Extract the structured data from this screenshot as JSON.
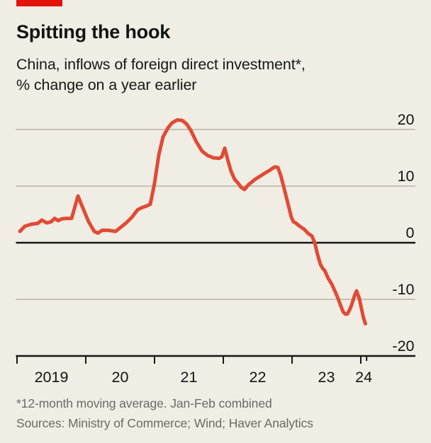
{
  "colors": {
    "background": "#f0ede4",
    "brand_red": "#e3120b",
    "line_red": "#e04b35",
    "gridline": "#b7b3a9",
    "axis": "#161616",
    "text_dark": "#131313",
    "text_gray": "#6b6b64"
  },
  "header": {
    "title": "Spitting the hook",
    "subtitle_line1": "China, inflows of foreign direct investment*,",
    "subtitle_line2": "% change on a year earlier"
  },
  "chart_data": {
    "type": "line",
    "title": "Spitting the hook",
    "subtitle": "China, inflows of foreign direct investment*, % change on a year earlier",
    "unit": "%",
    "grid": "horizontal only",
    "legend": "none",
    "x_axis": {
      "note": "decimal years; 2019.0 = Jan 2019 tick",
      "tick_labels": [
        "2019",
        "20",
        "21",
        "22",
        "23",
        "24"
      ],
      "tick_positions_years": [
        2019,
        2020,
        2021,
        2022,
        2023,
        2024
      ],
      "end_tick_year": 2024.084
    },
    "y_axis": {
      "tick_values": [
        20,
        10,
        0,
        -10,
        -20
      ],
      "gridline_values": [
        20,
        10,
        -10
      ],
      "zero_line_value": 0,
      "range": [
        -20,
        22.5
      ]
    },
    "series": [
      {
        "name": "China inflows of foreign direct investment, % change on a year earlier (12-month moving average)",
        "color": "#e04b35",
        "points": [
          [
            2019.041,
            2.0
          ],
          [
            2019.113,
            2.9
          ],
          [
            2019.216,
            3.3
          ],
          [
            2019.299,
            3.4
          ],
          [
            2019.361,
            4.0
          ],
          [
            2019.433,
            3.5
          ],
          [
            2019.495,
            3.7
          ],
          [
            2019.546,
            4.3
          ],
          [
            2019.598,
            3.9
          ],
          [
            2019.649,
            4.2
          ],
          [
            2019.711,
            4.3
          ],
          [
            2019.794,
            4.3
          ],
          [
            2019.887,
            8.25
          ],
          [
            2019.969,
            5.8
          ],
          [
            2020.041,
            3.7
          ],
          [
            2020.124,
            2.0
          ],
          [
            2020.175,
            1.7
          ],
          [
            2020.237,
            2.2
          ],
          [
            2020.32,
            2.2
          ],
          [
            2020.381,
            2.1
          ],
          [
            2020.433,
            2.0
          ],
          [
            2020.505,
            2.7
          ],
          [
            2020.588,
            3.5
          ],
          [
            2020.67,
            4.5
          ],
          [
            2020.753,
            5.8
          ],
          [
            2020.814,
            6.2
          ],
          [
            2020.887,
            6.5
          ],
          [
            2020.938,
            6.8
          ],
          [
            2021.0,
            10.5
          ],
          [
            2021.062,
            15.5
          ],
          [
            2021.124,
            18.7
          ],
          [
            2021.196,
            20.3
          ],
          [
            2021.258,
            21.2
          ],
          [
            2021.33,
            21.7
          ],
          [
            2021.402,
            21.6
          ],
          [
            2021.464,
            21.0
          ],
          [
            2021.526,
            19.9
          ],
          [
            2021.608,
            17.8
          ],
          [
            2021.691,
            16.2
          ],
          [
            2021.773,
            15.4
          ],
          [
            2021.856,
            15.0
          ],
          [
            2021.938,
            14.9
          ],
          [
            2021.979,
            15.2
          ],
          [
            2022.021,
            16.7
          ],
          [
            2022.072,
            14.3
          ],
          [
            2022.113,
            12.6
          ],
          [
            2022.165,
            11.2
          ],
          [
            2022.216,
            10.5
          ],
          [
            2022.258,
            9.8
          ],
          [
            2022.309,
            9.4
          ],
          [
            2022.361,
            10.2
          ],
          [
            2022.412,
            10.7
          ],
          [
            2022.464,
            11.2
          ],
          [
            2022.515,
            11.6
          ],
          [
            2022.567,
            12.0
          ],
          [
            2022.619,
            12.4
          ],
          [
            2022.67,
            12.75
          ],
          [
            2022.722,
            13.2
          ],
          [
            2022.753,
            13.4
          ],
          [
            2022.794,
            13.3
          ],
          [
            2022.835,
            11.9
          ],
          [
            2022.876,
            10.0
          ],
          [
            2022.918,
            8.0
          ],
          [
            2022.959,
            6.0
          ],
          [
            2022.99,
            4.5
          ],
          [
            2023.021,
            3.7
          ],
          [
            2023.052,
            3.5
          ],
          [
            2023.113,
            2.9
          ],
          [
            2023.175,
            2.4
          ],
          [
            2023.237,
            1.6
          ],
          [
            2023.289,
            1.2
          ],
          [
            2023.33,
            0.0
          ],
          [
            2023.371,
            -2.1
          ],
          [
            2023.412,
            -3.8
          ],
          [
            2023.443,
            -4.5
          ],
          [
            2023.474,
            -4.9
          ],
          [
            2023.526,
            -6.3
          ],
          [
            2023.577,
            -7.3
          ],
          [
            2023.629,
            -8.7
          ],
          [
            2023.67,
            -9.9
          ],
          [
            2023.701,
            -10.9
          ],
          [
            2023.742,
            -12.2
          ],
          [
            2023.773,
            -12.6
          ],
          [
            2023.804,
            -12.6
          ],
          [
            2023.835,
            -11.9
          ],
          [
            2023.866,
            -11.0
          ],
          [
            2023.907,
            -9.4
          ],
          [
            2023.938,
            -8.5
          ],
          [
            2023.979,
            -9.9
          ],
          [
            2024.01,
            -11.7
          ],
          [
            2024.041,
            -13.4
          ],
          [
            2024.067,
            -14.3
          ]
        ]
      }
    ]
  },
  "footer": {
    "note": "*12-month moving average. Jan-Feb combined",
    "sources": "Sources: Ministry of Commerce; Wind; Haver Analytics"
  }
}
